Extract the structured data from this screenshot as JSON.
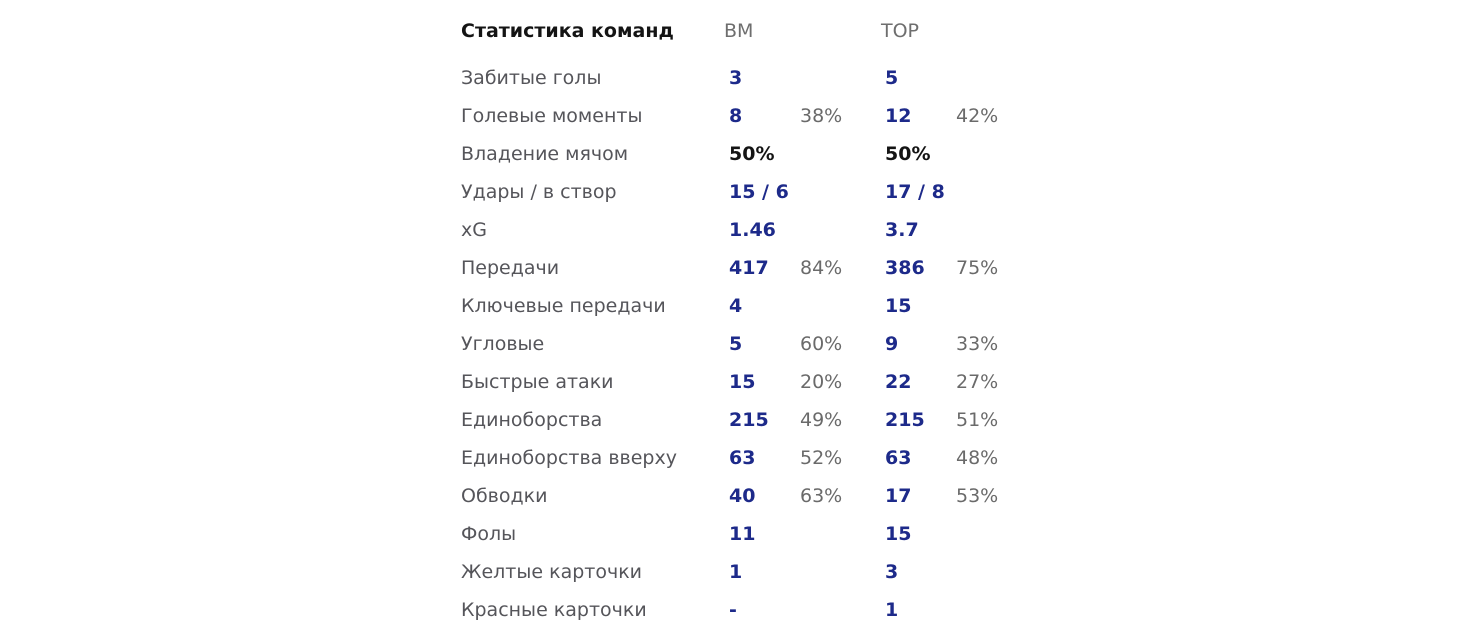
{
  "header": {
    "title": "Статистика команд",
    "team_home": "ВМ",
    "team_away": "ТОР"
  },
  "rows": [
    {
      "label": "Забитые голы",
      "home": "3",
      "home_pct": "",
      "away": "5",
      "away_pct": ""
    },
    {
      "label": "Голевые моменты",
      "home": "8",
      "home_pct": "38%",
      "away": "12",
      "away_pct": "42%"
    },
    {
      "label": "Владение мячом",
      "home": "50%",
      "home_pct": "",
      "away": "50%",
      "away_pct": ""
    },
    {
      "label": "Удары / в створ",
      "home": "15 / 6",
      "home_pct": "",
      "away": "17 / 8",
      "away_pct": ""
    },
    {
      "label": "xG",
      "home": "1.46",
      "home_pct": "",
      "away": "3.7",
      "away_pct": ""
    },
    {
      "label": "Передачи",
      "home": "417",
      "home_pct": "84%",
      "away": "386",
      "away_pct": "75%"
    },
    {
      "label": "Ключевые передачи",
      "home": "4",
      "home_pct": "",
      "away": "15",
      "away_pct": ""
    },
    {
      "label": "Угловые",
      "home": "5",
      "home_pct": "60%",
      "away": "9",
      "away_pct": "33%"
    },
    {
      "label": "Быстрые атаки",
      "home": "15",
      "home_pct": "20%",
      "away": "22",
      "away_pct": "27%"
    },
    {
      "label": "Единоборства",
      "home": "215",
      "home_pct": "49%",
      "away": "215",
      "away_pct": "51%"
    },
    {
      "label": "Единоборства вверху",
      "home": "63",
      "home_pct": "52%",
      "away": "63",
      "away_pct": "48%"
    },
    {
      "label": "Обводки",
      "home": "40",
      "home_pct": "63%",
      "away": "17",
      "away_pct": "53%"
    },
    {
      "label": "Фолы",
      "home": "11",
      "home_pct": "",
      "away": "15",
      "away_pct": ""
    },
    {
      "label": "Желтые карточки",
      "home": "1",
      "home_pct": "",
      "away": "3",
      "away_pct": ""
    },
    {
      "label": "Красные карточки",
      "home": "-",
      "home_pct": "",
      "away": "1",
      "away_pct": ""
    }
  ],
  "colors": {
    "value": "#1d2a8a",
    "possession_value": "#141414",
    "label": "#55555a",
    "percent": "#6a6a6a"
  }
}
